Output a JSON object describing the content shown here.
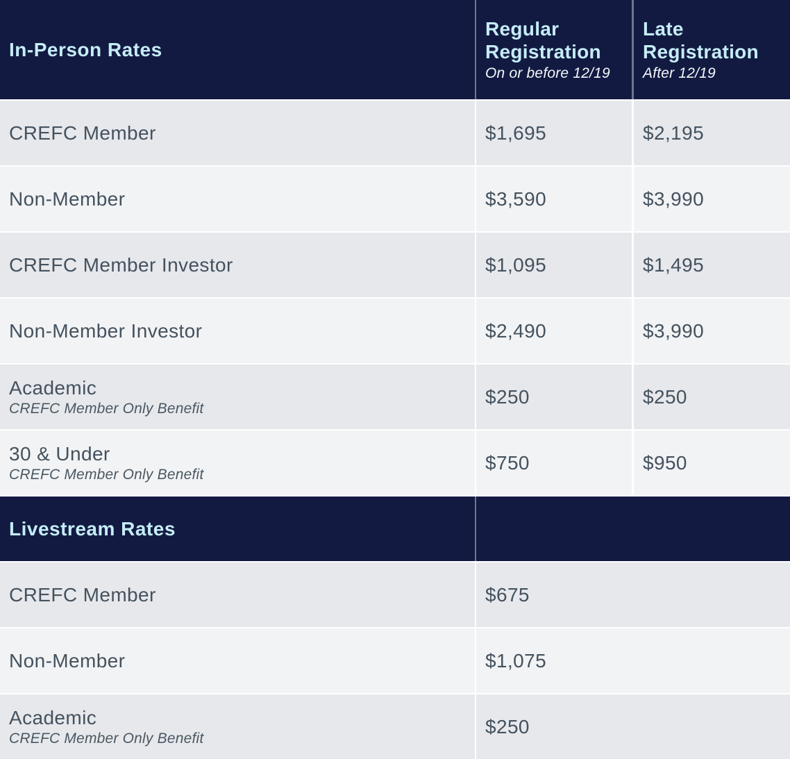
{
  "colors": {
    "header_bg": "#131a42",
    "header_title_text": "#c5edf6",
    "header_subtitle_text": "#f4f8fb",
    "row_bg_dark": "#e7e8ec",
    "row_bg_light": "#f2f3f5",
    "row_text": "#44525e",
    "divider": "#ffffff"
  },
  "in_person": {
    "title": "In-Person Rates",
    "columns": [
      {
        "title": "Regular Registration",
        "subtitle": "On or before 12/19"
      },
      {
        "title": "Late Registration",
        "subtitle": "After 12/19"
      }
    ],
    "rows": [
      {
        "label": "CREFC Member",
        "note": "",
        "regular": "$1,695",
        "late": "$2,195"
      },
      {
        "label": "Non-Member",
        "note": "",
        "regular": "$3,590",
        "late": "$3,990"
      },
      {
        "label": "CREFC Member Investor",
        "note": "",
        "regular": "$1,095",
        "late": "$1,495"
      },
      {
        "label": "Non-Member Investor",
        "note": "",
        "regular": "$2,490",
        "late": "$3,990"
      },
      {
        "label": "Academic",
        "note": "CREFC Member Only Benefit",
        "regular": "$250",
        "late": "$250"
      },
      {
        "label": "30 & Under",
        "note": "CREFC Member Only Benefit",
        "regular": "$750",
        "late": "$950"
      }
    ]
  },
  "livestream": {
    "title": "Livestream Rates",
    "rows": [
      {
        "label": "CREFC Member",
        "note": "",
        "price": "$675"
      },
      {
        "label": "Non-Member",
        "note": "",
        "price": "$1,075"
      },
      {
        "label": "Academic",
        "note": "CREFC Member Only Benefit",
        "price": "$250"
      }
    ]
  }
}
